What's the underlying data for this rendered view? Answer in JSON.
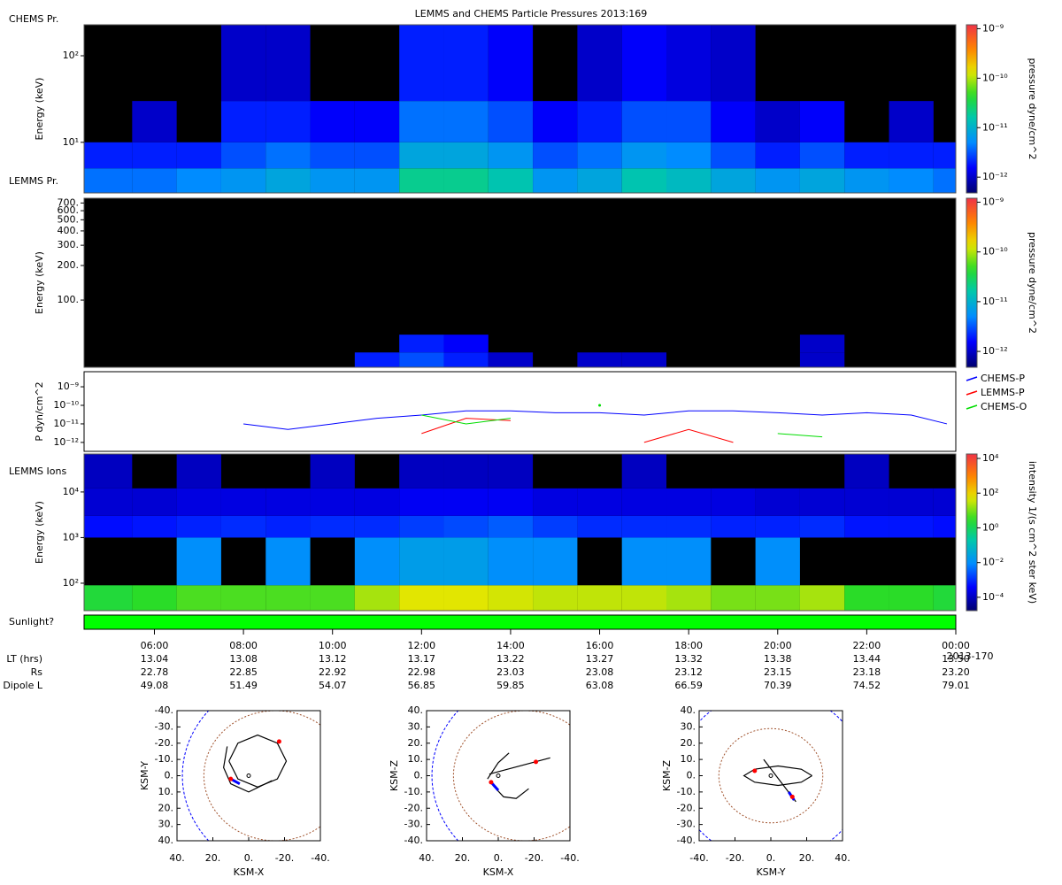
{
  "chart_data": [
    {
      "type": "heatmap",
      "title": "LEMMS and CHEMS Particle Pressures  2013:169",
      "label": "CHEMS Pr.",
      "ylabel": "Energy (keV)",
      "xlim": [
        4.42,
        24
      ],
      "ylim": [
        2.6,
        228
      ],
      "log_y": true,
      "yticks": [
        {
          "value": 10,
          "label": "10¹"
        },
        {
          "value": 100,
          "label": "10²"
        }
      ],
      "xbins": [
        4.42,
        5.5,
        6.5,
        7.5,
        8.5,
        9.5,
        10.5,
        11.5,
        12.5,
        13.5,
        14.5,
        15.5,
        16.5,
        17.5,
        18.5,
        19.5,
        20.5,
        21.5,
        22.5,
        23.5,
        24
      ],
      "ybins": [
        2.6,
        5,
        10,
        30,
        228
      ],
      "z": [
        [
          4e-12,
          4e-12,
          5e-12,
          6e-12,
          8e-12,
          6e-12,
          6e-12,
          2e-11,
          2e-11,
          1.5e-11,
          6e-12,
          8e-12,
          1.5e-11,
          1.2e-11,
          8e-12,
          6e-12,
          8e-12,
          6e-12,
          5e-12,
          4e-12
        ],
        [
          2e-12,
          2e-12,
          2e-12,
          3e-12,
          4e-12,
          3e-12,
          3e-12,
          8e-12,
          8e-12,
          6e-12,
          3e-12,
          4e-12,
          6e-12,
          5e-12,
          3e-12,
          2e-12,
          3e-12,
          2e-12,
          2e-12,
          2e-12
        ],
        [
          null,
          1e-12,
          null,
          2e-12,
          2e-12,
          1.5e-12,
          1.5e-12,
          4e-12,
          4e-12,
          3e-12,
          1.5e-12,
          2e-12,
          3e-12,
          3e-12,
          1.5e-12,
          1e-12,
          1.5e-12,
          null,
          1e-12,
          null
        ],
        [
          null,
          null,
          null,
          1e-12,
          1e-12,
          null,
          null,
          2e-12,
          2e-12,
          1.5e-12,
          null,
          1e-12,
          1.5e-12,
          1.2e-12,
          1e-12,
          null,
          null,
          null,
          null,
          null
        ]
      ],
      "zlim": [
        4.8e-13,
        1.2e-09
      ],
      "log_z": true,
      "zlabel": "pressure dyne/cm^2",
      "zticks": [
        {
          "value": 1e-12,
          "label": "10⁻¹²"
        },
        {
          "value": 1e-11,
          "label": "10⁻¹¹"
        },
        {
          "value": 1e-10,
          "label": "10⁻¹⁰"
        },
        {
          "value": 1e-09,
          "label": "10⁻⁹"
        }
      ]
    },
    {
      "type": "heatmap",
      "label": "LEMMS Pr.",
      "ylabel": "Energy (keV)",
      "xlim": [
        4.42,
        24
      ],
      "ylim": [
        26,
        770
      ],
      "log_y": true,
      "yticks": [
        {
          "value": 100,
          "label": "100."
        },
        {
          "value": 200,
          "label": "200."
        },
        {
          "value": 300,
          "label": "300."
        },
        {
          "value": 400,
          "label": "400."
        },
        {
          "value": 500,
          "label": "500."
        },
        {
          "value": 600,
          "label": "600."
        },
        {
          "value": 700,
          "label": "700."
        }
      ],
      "xbins": [
        4.42,
        5.5,
        6.5,
        7.5,
        8.5,
        9.5,
        10.5,
        11.5,
        12.5,
        13.5,
        14.5,
        15.5,
        16.5,
        17.5,
        18.5,
        19.5,
        20.5,
        21.5,
        22.5,
        23.5,
        24
      ],
      "ybins": [
        26,
        35,
        50
      ],
      "z": [
        [
          null,
          null,
          null,
          null,
          null,
          null,
          2e-12,
          3e-12,
          2e-12,
          1e-12,
          null,
          1e-12,
          1e-12,
          null,
          null,
          null,
          1e-12,
          null,
          null,
          null
        ],
        [
          null,
          null,
          null,
          null,
          null,
          null,
          null,
          2e-12,
          1.5e-12,
          null,
          null,
          null,
          null,
          null,
          null,
          null,
          1e-12,
          null,
          null,
          null
        ]
      ],
      "zlim": [
        4.8e-13,
        1.2e-09
      ],
      "log_z": true,
      "zlabel": "pressure dyne/cm^2",
      "zticks": [
        {
          "value": 1e-12,
          "label": "10⁻¹²"
        },
        {
          "value": 1e-11,
          "label": "10⁻¹¹"
        },
        {
          "value": 1e-10,
          "label": "10⁻¹⁰"
        },
        {
          "value": 1e-09,
          "label": "10⁻⁹"
        }
      ]
    },
    {
      "type": "line",
      "ylabel": "P dyn/cm^2",
      "xlim": [
        4.42,
        24
      ],
      "ylim": [
        3.3e-13,
        6.5e-09
      ],
      "log_y": true,
      "legend": "right",
      "yticks": [
        {
          "value": 1e-12,
          "label": "10⁻¹²"
        },
        {
          "value": 1e-11,
          "label": "10⁻¹¹"
        },
        {
          "value": 1e-10,
          "label": "10⁻¹⁰"
        },
        {
          "value": 1e-09,
          "label": "10⁻⁹"
        }
      ],
      "x": [
        5,
        6,
        7,
        8,
        9,
        10,
        11,
        12,
        13,
        14,
        15,
        16,
        17,
        18,
        19,
        20,
        21,
        22,
        23,
        23.8
      ],
      "series": [
        {
          "name": "CHEMS-P",
          "color": "#0000ff",
          "values": [
            null,
            null,
            null,
            1e-11,
            5e-12,
            1e-11,
            2e-11,
            3e-11,
            5e-11,
            5e-11,
            4e-11,
            4e-11,
            3e-11,
            5e-11,
            5e-11,
            4e-11,
            3e-11,
            4e-11,
            3e-11,
            1e-11
          ]
        },
        {
          "name": "LEMMS-P",
          "color": "#ff0000",
          "values": [
            null,
            null,
            null,
            null,
            null,
            null,
            null,
            3e-12,
            2e-11,
            1.5e-11,
            null,
            null,
            1e-12,
            5e-12,
            1e-12,
            null,
            null,
            null,
            null,
            null
          ]
        },
        {
          "name": "CHEMS-O",
          "color": "#00dd00",
          "values": [
            null,
            null,
            null,
            null,
            null,
            null,
            null,
            3e-11,
            1e-11,
            2e-11,
            null,
            1e-10,
            null,
            null,
            null,
            3e-12,
            2e-12,
            null,
            null,
            null
          ]
        }
      ]
    },
    {
      "type": "heatmap",
      "label": "LEMMS Ions",
      "ylabel": "Energy (keV)",
      "xlim": [
        4.42,
        24
      ],
      "ylim": [
        25,
        68000
      ],
      "log_y": true,
      "yticks": [
        {
          "value": 100,
          "label": "10²"
        },
        {
          "value": 1000,
          "label": "10³"
        },
        {
          "value": 10000,
          "label": "10⁴"
        }
      ],
      "xbins": [
        4.42,
        5.5,
        6.5,
        7.5,
        8.5,
        9.5,
        10.5,
        11.5,
        12.5,
        13.5,
        14.5,
        15.5,
        16.5,
        17.5,
        18.5,
        19.5,
        20.5,
        21.5,
        22.5,
        23.5,
        24
      ],
      "ybins": [
        25,
        90,
        1000,
        3000,
        12000,
        68000
      ],
      "z": [
        [
          2,
          3,
          5,
          5,
          5,
          5,
          20,
          50,
          50,
          40,
          30,
          30,
          30,
          20,
          10,
          10,
          20,
          3,
          3,
          2
        ],
        [
          null,
          null,
          0.01,
          null,
          0.01,
          null,
          0.01,
          0.02,
          0.02,
          0.01,
          0.01,
          null,
          0.01,
          0.01,
          null,
          0.01,
          null,
          null,
          null,
          null
        ],
        [
          0.0005,
          0.0006,
          0.0008,
          0.001,
          0.0008,
          0.001,
          0.001,
          0.0015,
          0.002,
          0.003,
          0.0015,
          0.001,
          0.001,
          0.001,
          0.0008,
          0.0008,
          0.001,
          0.0006,
          0.0006,
          0.0005
        ],
        [
          0.00015,
          0.00015,
          0.0002,
          0.0002,
          0.0002,
          0.0002,
          0.0002,
          0.0003,
          0.0003,
          0.0003,
          0.0002,
          0.0002,
          0.0002,
          0.0002,
          0.0002,
          0.00015,
          0.00015,
          0.00015,
          0.00015,
          0.00015
        ],
        [
          0.0001,
          null,
          0.0001,
          null,
          null,
          0.0001,
          null,
          0.0001,
          0.0001,
          0.0001,
          null,
          null,
          0.0001,
          null,
          null,
          null,
          null,
          0.0001,
          null,
          null
        ]
      ],
      "zlim": [
        1.7e-05,
        18000
      ],
      "log_z": true,
      "zlabel": "intensity 1/(s cm^2 ster keV)",
      "zticks": [
        {
          "value": 0.0001,
          "label": "10⁻⁴"
        },
        {
          "value": 0.01,
          "label": "10⁻²"
        },
        {
          "value": 1,
          "label": "10⁰"
        },
        {
          "value": 100,
          "label": "10²"
        },
        {
          "value": 10000,
          "label": "10⁴"
        }
      ]
    },
    {
      "type": "band",
      "label": "Sunlight?",
      "color": "#00ff00",
      "xlim": [
        4.42,
        24
      ],
      "spans": [
        [
          4.42,
          24
        ]
      ]
    },
    {
      "type": "orbit",
      "xlabel": "KSM-X",
      "ylabel": "KSM-Y",
      "xlim": [
        40,
        -40
      ],
      "ylim": [
        40,
        -40
      ],
      "xticks": [
        {
          "value": 40,
          "label": "40."
        },
        {
          "value": 20,
          "label": "20."
        },
        {
          "value": 0,
          "label": "0."
        },
        {
          "value": -20,
          "label": "-20."
        },
        {
          "value": -40,
          "label": "-40."
        }
      ],
      "yticks": [
        {
          "value": -40,
          "label": "-40."
        },
        {
          "value": -30,
          "label": "-30."
        },
        {
          "value": -20,
          "label": "-20."
        },
        {
          "value": -10,
          "label": "-10."
        },
        {
          "value": 0,
          "label": "0."
        },
        {
          "value": 10,
          "label": "10."
        },
        {
          "value": 20,
          "label": "20."
        },
        {
          "value": 30,
          "label": "30."
        },
        {
          "value": 40,
          "label": "40."
        }
      ],
      "traces": [
        {
          "color": "#000000",
          "x": [
            11,
            6,
            -5,
            -16,
            -21,
            -16,
            -5,
            6,
            11,
            null,
            12,
            14,
            10,
            0,
            -13
          ],
          "y": [
            -9,
            2,
            7,
            2,
            -9,
            -20,
            -25,
            -20,
            -9,
            null,
            -18,
            -5,
            5,
            10,
            3
          ]
        },
        {
          "color": "#0000ff",
          "x": [
            10,
            5
          ],
          "y": [
            2,
            5
          ]
        }
      ],
      "points": {
        "color": "#ff0000",
        "x": [
          -17,
          10
        ],
        "y": [
          -21,
          2
        ]
      }
    },
    {
      "type": "orbit",
      "xlabel": "KSM-X",
      "ylabel": "KSM-Z",
      "xlim": [
        40,
        -40
      ],
      "ylim": [
        -40,
        40
      ],
      "xticks": [
        {
          "value": 40,
          "label": "40."
        },
        {
          "value": 20,
          "label": "20."
        },
        {
          "value": 0,
          "label": "0."
        },
        {
          "value": -20,
          "label": "-20."
        },
        {
          "value": -40,
          "label": "-40."
        }
      ],
      "yticks": [
        {
          "value": 40,
          "label": "40."
        },
        {
          "value": 30,
          "label": "30."
        },
        {
          "value": 20,
          "label": "20."
        },
        {
          "value": 10,
          "label": "10."
        },
        {
          "value": 0,
          "label": "0."
        },
        {
          "value": -10,
          "label": "-10."
        },
        {
          "value": -20,
          "label": "-20."
        },
        {
          "value": -30,
          "label": "-30."
        },
        {
          "value": -40,
          "label": "-40."
        }
      ],
      "traces": [
        {
          "color": "#000000",
          "x": [
            6,
            0,
            -6,
            null,
            5,
            -29,
            null,
            3,
            -3,
            -10,
            -17
          ],
          "y": [
            -2,
            8,
            14,
            null,
            1,
            11,
            null,
            -6,
            -13,
            -14,
            -8
          ]
        },
        {
          "color": "#0000ff",
          "x": [
            4,
            0
          ],
          "y": [
            -4,
            -9
          ]
        }
      ],
      "points": {
        "color": "#ff0000",
        "x": [
          -21,
          4
        ],
        "y": [
          8.5,
          -4
        ]
      }
    },
    {
      "type": "orbit",
      "xlabel": "KSM-Y",
      "ylabel": "KSM-Z",
      "xlim": [
        -40,
        40
      ],
      "ylim": [
        -40,
        40
      ],
      "xticks": [
        {
          "value": -40,
          "label": "-40."
        },
        {
          "value": -20,
          "label": "-20."
        },
        {
          "value": 0,
          "label": "0."
        },
        {
          "value": 20,
          "label": "20."
        },
        {
          "value": 40,
          "label": "40."
        }
      ],
      "yticks": [
        {
          "value": 40,
          "label": "40."
        },
        {
          "value": 30,
          "label": "30."
        },
        {
          "value": 20,
          "label": "20."
        },
        {
          "value": 10,
          "label": "10."
        },
        {
          "value": 0,
          "label": "0."
        },
        {
          "value": -10,
          "label": "-10."
        },
        {
          "value": -20,
          "label": "-20."
        },
        {
          "value": -30,
          "label": "-30."
        },
        {
          "value": -40,
          "label": "-40."
        }
      ],
      "traces": [
        {
          "color": "#000000",
          "x": [
            23,
            17,
            4,
            -9,
            -15,
            -9,
            4,
            17,
            23,
            null,
            -4,
            14
          ],
          "y": [
            0,
            4,
            6,
            4,
            0,
            -4,
            -6,
            -4,
            0,
            null,
            10,
            -16
          ]
        },
        {
          "color": "#0000ff",
          "x": [
            10,
            13
          ],
          "y": [
            -10,
            -15
          ]
        }
      ],
      "points": {
        "color": "#ff0000",
        "x": [
          -9,
          12
        ],
        "y": [
          3,
          -13
        ]
      }
    }
  ],
  "time_axis": {
    "xlim": [
      4.42,
      24
    ],
    "xticks": [
      {
        "value": 6,
        "label": "06:00"
      },
      {
        "value": 8,
        "label": "08:00"
      },
      {
        "value": 10,
        "label": "10:00"
      },
      {
        "value": 12,
        "label": "12:00"
      },
      {
        "value": 14,
        "label": "14:00"
      },
      {
        "value": 16,
        "label": "16:00"
      },
      {
        "value": 18,
        "label": "18:00"
      },
      {
        "value": 20,
        "label": "20:00"
      },
      {
        "value": 22,
        "label": "22:00"
      },
      {
        "value": 24,
        "label": "00:00"
      }
    ],
    "date_label": "2013-170",
    "rows": [
      {
        "label": "LT (hrs)",
        "values": [
          "13.04",
          "13.08",
          "13.12",
          "13.17",
          "13.22",
          "13.27",
          "13.32",
          "13.38",
          "13.44",
          "13.50"
        ]
      },
      {
        "label": "Rs",
        "values": [
          "22.78",
          "22.85",
          "22.92",
          "22.98",
          "23.03",
          "23.08",
          "23.12",
          "23.15",
          "23.18",
          "23.20"
        ]
      },
      {
        "label": "Dipole L",
        "values": [
          "49.08",
          "51.49",
          "54.07",
          "56.85",
          "59.85",
          "63.08",
          "66.59",
          "70.39",
          "74.52",
          "79.01"
        ]
      }
    ]
  }
}
